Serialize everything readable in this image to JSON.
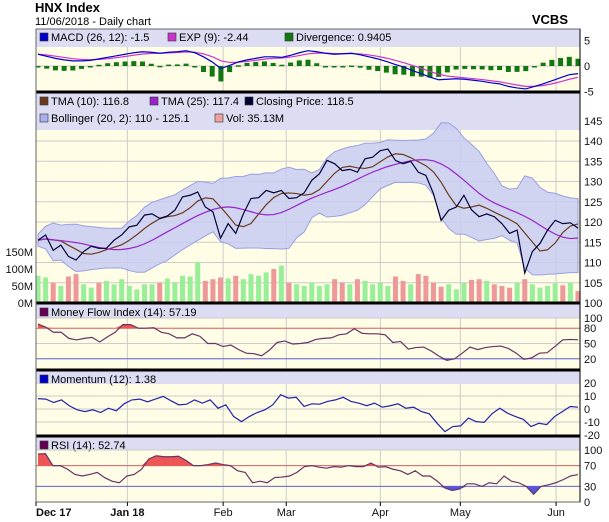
{
  "header": {
    "title": "HNX Index",
    "subtitle": "11/06/2018 - Daily chart",
    "brand": "VCBS"
  },
  "legends": {
    "macd": [
      {
        "label": "MACD (26, 12): -1.5",
        "color": "#0000cc"
      },
      {
        "label": "EXP (9): -2.44",
        "color": "#cc33cc"
      },
      {
        "label": "Divergence: 0.9405",
        "color": "#117711"
      }
    ],
    "price": [
      {
        "label": "TMA (10): 116.8",
        "color": "#6b3a1e"
      },
      {
        "label": "TMA (25): 117.4",
        "color": "#9922cc"
      },
      {
        "label": "Closing Price: 118.5",
        "color": "#000033"
      },
      {
        "label": "Bollinger (20, 2): 110 - 125.1",
        "color": "#aab0ee"
      },
      {
        "label": "Vol: 35.13M",
        "color": "#f0a0a0"
      }
    ],
    "mfi": [
      {
        "label": "Money Flow Index (14): 57.19",
        "color": "#660055"
      }
    ],
    "momentum": [
      {
        "label": "Momentum (12): 1.38",
        "color": "#0000cc"
      }
    ],
    "rsi": [
      {
        "label": "RSI (14): 52.74",
        "color": "#660055"
      }
    ]
  },
  "colors": {
    "panel_header": "#dcdcf2",
    "plot_bg": "#fffde6",
    "grid": "#cccccc",
    "up": "#99ee99",
    "down": "#ee9999",
    "overbought": "#ee5555",
    "oversold": "#5555dd"
  },
  "chart_data": {
    "type": "line",
    "x_labels": [
      {
        "label": "Dec 17",
        "bold": true,
        "pos": 0
      },
      {
        "label": "Jan 18",
        "bold": true,
        "pos": 0.168
      },
      {
        "label": "Feb",
        "bold": false,
        "pos": 0.344
      },
      {
        "label": "Mar",
        "bold": false,
        "pos": 0.46
      },
      {
        "label": "Apr",
        "bold": false,
        "pos": 0.633
      },
      {
        "label": "May",
        "bold": false,
        "pos": 0.78
      },
      {
        "label": "Jun",
        "bold": false,
        "pos": 0.956
      }
    ],
    "price_axis": {
      "ticks": [
        "145",
        "140",
        "135",
        "130",
        "125",
        "120",
        "115",
        "110",
        "105",
        "100"
      ],
      "range": [
        100,
        145
      ]
    },
    "volume_axis": {
      "ticks": [
        "150M",
        "100M",
        "50M",
        "0M"
      ],
      "range_m": [
        0,
        450
      ]
    },
    "macd_axis": {
      "ticks": [
        "5",
        "0",
        "-5"
      ],
      "range": [
        -5,
        5
      ]
    },
    "mfi_axis": {
      "ticks": [
        "100",
        "80",
        "50",
        "20"
      ],
      "range": [
        0,
        100
      ],
      "levels": [
        80,
        20
      ]
    },
    "momentum_axis": {
      "ticks": [
        "20",
        "10",
        "0",
        "-10",
        "-20"
      ],
      "range": [
        -20,
        20
      ]
    },
    "rsi_axis": {
      "ticks": [
        "100",
        "70",
        "30",
        "0"
      ],
      "range": [
        0,
        100
      ],
      "levels": [
        70,
        30
      ]
    },
    "close": [
      115.5,
      116.8,
      113,
      114.3,
      111.5,
      110.6,
      112.7,
      114,
      113.5,
      113.5,
      115.5,
      116.8,
      118.8,
      119.2,
      121.7,
      122,
      120.9,
      121.5,
      122.9,
      126.2,
      126.6,
      127.4,
      123.7,
      122.5,
      116,
      119.6,
      117.2,
      122,
      125.8,
      126,
      127.8,
      127.2,
      127.8,
      125.8,
      126,
      127.2,
      130.3,
      131.9,
      135.2,
      134.4,
      132.7,
      133,
      132.3,
      135.6,
      136,
      137.6,
      138,
      135.2,
      134.4,
      135,
      132.3,
      131.5,
      127,
      120.4,
      122.9,
      123.7,
      126.6,
      123,
      121.3,
      122,
      121.3,
      119.6,
      117.2,
      118,
      107.4,
      112.7,
      114.7,
      118,
      120.4,
      119.6,
      119.8,
      118.5
    ],
    "volume_m": [
      80,
      75,
      60,
      50,
      78,
      85,
      55,
      45,
      60,
      65,
      55,
      70,
      50,
      40,
      55,
      55,
      60,
      72,
      60,
      80,
      78,
      120,
      65,
      70,
      75,
      72,
      80,
      70,
      85,
      80,
      90,
      100,
      110,
      60,
      55,
      50,
      60,
      50,
      55,
      70,
      60,
      55,
      70,
      65,
      55,
      60,
      50,
      78,
      65,
      55,
      85,
      80,
      60,
      48,
      55,
      40,
      60,
      68,
      70,
      65,
      55,
      50,
      45,
      60,
      70,
      55,
      45,
      50,
      58,
      52,
      60,
      35
    ],
    "macd": [
      2.3,
      1.9,
      1.5,
      1.2,
      1.0,
      1.0,
      1.1,
      1.4,
      1.7,
      2.0,
      2.3,
      2.6,
      2.8,
      2.7,
      2.5,
      2.7,
      2.8,
      3.0,
      2.6,
      1.8,
      0.8,
      -0.5,
      0.1,
      0.8,
      1.2,
      1.5,
      1.8,
      1.8,
      1.7,
      2.1,
      2.6,
      3.0,
      2.8,
      2.5,
      2.3,
      2.4,
      2.5,
      2.2,
      1.8,
      1.4,
      0.9,
      0.3,
      -0.2,
      -0.9,
      -1.5,
      -2.2,
      -2.7,
      -2.6,
      -2.5,
      -2.6,
      -2.8,
      -3.0,
      -3.3,
      -3.5,
      -4.0,
      -4.3,
      -4.5,
      -4.0,
      -3.5,
      -2.9,
      -2.3,
      -1.7,
      -1.5
    ],
    "mfi": [
      88,
      82,
      72,
      72,
      60,
      57,
      60,
      62,
      53,
      63,
      72,
      87,
      87,
      80,
      80,
      81,
      72,
      69,
      61,
      61,
      69,
      64,
      50,
      50,
      44,
      47,
      38,
      31,
      30,
      26,
      37,
      52,
      55,
      49,
      50,
      52,
      58,
      60,
      61,
      67,
      69,
      79,
      70,
      69,
      69,
      67,
      52,
      54,
      39,
      42,
      43,
      35,
      25,
      17,
      20,
      31,
      43,
      38,
      42,
      44,
      45,
      40,
      31,
      19,
      22,
      31,
      32,
      44,
      57,
      58,
      57.19
    ],
    "momentum": [
      8,
      7.6,
      5,
      7,
      2.5,
      -0.6,
      -2,
      -0.6,
      -2.7,
      0.6,
      -1.4,
      4,
      7,
      7.6,
      5.5,
      7.6,
      9.7,
      6.3,
      3.2,
      3.7,
      7,
      4.5,
      7,
      0.6,
      3.2,
      -5.8,
      -9.7,
      -5.8,
      -2.7,
      -0.6,
      3.2,
      11,
      8.4,
      9,
      2,
      4,
      3.7,
      5.8,
      7,
      9,
      5.8,
      4.5,
      2.5,
      4.5,
      1.4,
      2.5,
      4,
      0.6,
      1.4,
      -2,
      -3.7,
      -11,
      -17.4,
      -13.5,
      -13,
      -7,
      -9.7,
      -10.3,
      -3.7,
      0.6,
      -3.2,
      -5.8,
      -7.9,
      -13.5,
      -11,
      -12,
      -5.8,
      -2,
      1.9,
      1.38
    ],
    "rsi": [
      92,
      93,
      70,
      70,
      63,
      53,
      50,
      53,
      57,
      47,
      40,
      37,
      50,
      53,
      63,
      83,
      89,
      87,
      87,
      88,
      80,
      70,
      70,
      72,
      75,
      72,
      70,
      60,
      57,
      37,
      40,
      37,
      47,
      48,
      50,
      57,
      68,
      70,
      67,
      65,
      68,
      67,
      70,
      68,
      68,
      75,
      67,
      68,
      63,
      60,
      53,
      60,
      50,
      50,
      40,
      27,
      22,
      25,
      35,
      35,
      30,
      37,
      35,
      50,
      40,
      37,
      30,
      15,
      30,
      33,
      37,
      43,
      50,
      52.74
    ]
  }
}
